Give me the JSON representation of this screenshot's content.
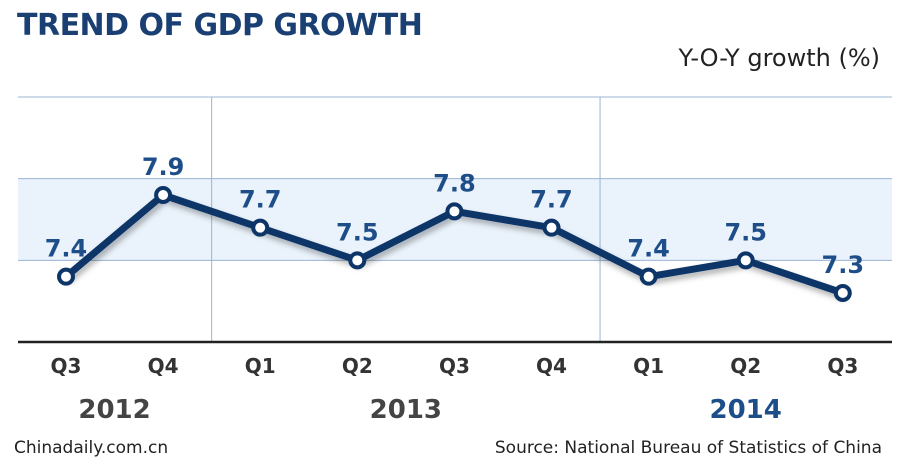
{
  "chart_data": {
    "type": "line",
    "title": "TREND OF GDP GROWTH",
    "ylabel": "Y-O-Y growth (%)",
    "xlabel": "",
    "categories": [
      "Q3",
      "Q4",
      "Q1",
      "Q2",
      "Q3",
      "Q4",
      "Q1",
      "Q2",
      "Q3"
    ],
    "years": [
      {
        "label": "2012",
        "start": 0,
        "end": 1,
        "color": "#444444"
      },
      {
        "label": "2013",
        "start": 2,
        "end": 5,
        "color": "#444444"
      },
      {
        "label": "2014",
        "start": 6,
        "end": 8,
        "color": "#1d4e89"
      }
    ],
    "values": [
      7.4,
      7.9,
      7.7,
      7.5,
      7.8,
      7.7,
      7.4,
      7.5,
      7.3
    ],
    "data_labels": [
      "7.4",
      "7.9",
      "7.7",
      "7.5",
      "7.8",
      "7.7",
      "7.4",
      "7.5",
      "7.3"
    ],
    "ylim": [
      7.0,
      8.5
    ],
    "gridlines": [
      7.5,
      8.0,
      8.5
    ],
    "highlight_band": [
      7.5,
      8.0
    ],
    "grid": true,
    "legend": "none",
    "colors": {
      "line": "#0d3567",
      "label": "#1d4e89",
      "band": "#eaf2fb",
      "grid": "#9ab5d6"
    }
  },
  "footer": {
    "left": "Chinadaily.com.cn",
    "right": "Source: National Bureau of Statistics of China"
  }
}
